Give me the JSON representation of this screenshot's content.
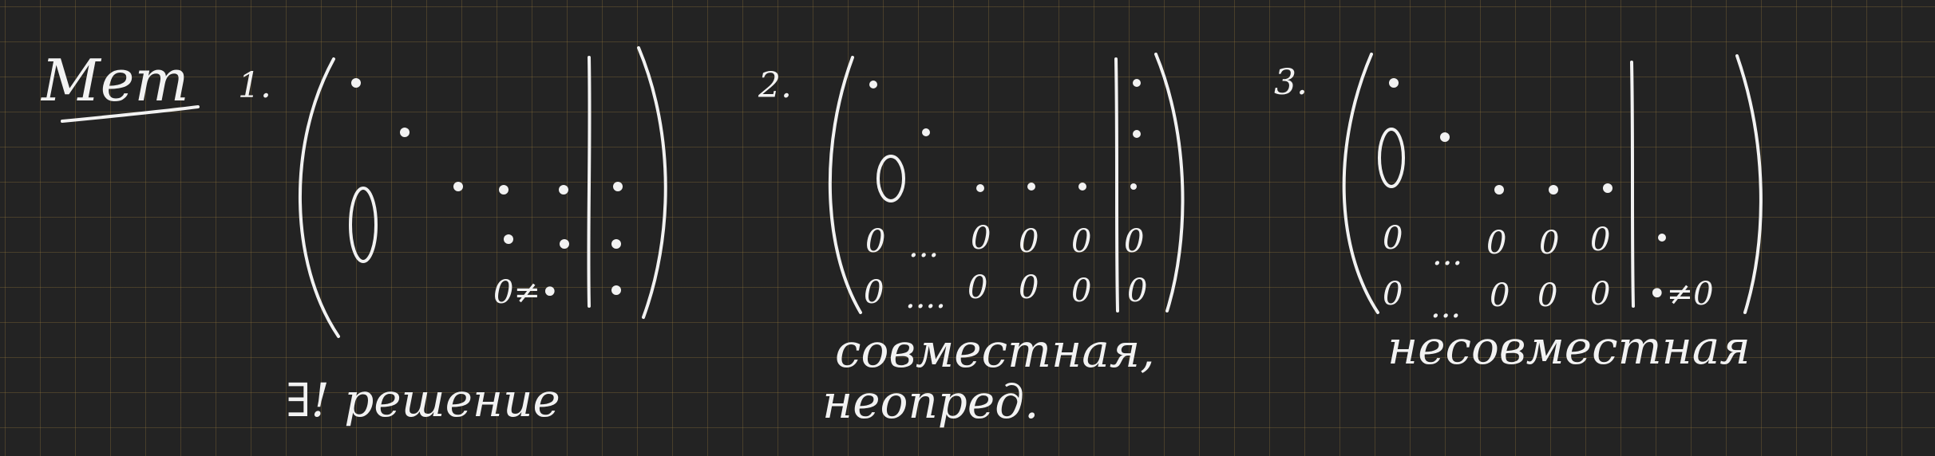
{
  "title": "Мет",
  "items": [
    {
      "number": "1.",
      "caption": "∃! решение",
      "ineq": "0≠•"
    },
    {
      "number": "2.",
      "caption_line1": "совместная,",
      "caption_line2": "неопред.",
      "zero": "0",
      "ellipsis": "...",
      "ellipsis_long": "....",
      "dots": "•"
    },
    {
      "number": "3.",
      "caption": "несовместная",
      "ineq": "•≠0",
      "zero": "0",
      "ellipsis": "...",
      "ellipsis_short": "..."
    }
  ]
}
